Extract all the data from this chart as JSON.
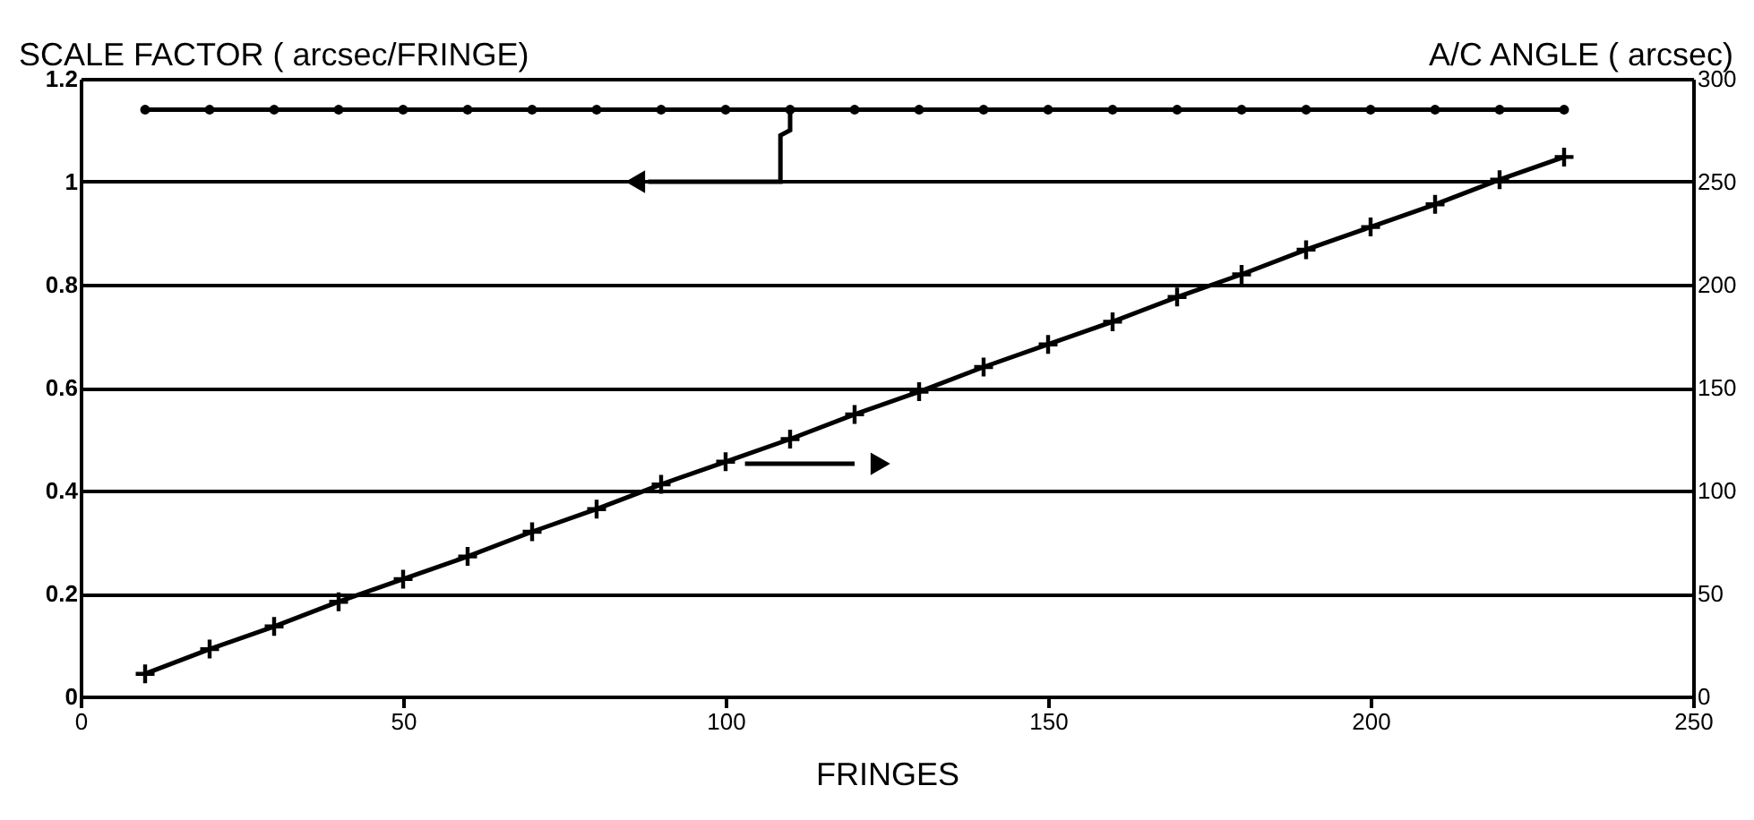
{
  "chart_data": {
    "type": "line",
    "x": [
      10,
      20,
      30,
      40,
      50,
      60,
      70,
      80,
      90,
      100,
      110,
      120,
      130,
      140,
      150,
      160,
      170,
      180,
      190,
      200,
      210,
      220,
      230
    ],
    "xlabel": "FRINGES",
    "ylabel": "SCALE FACTOR ( arcsec/FRINGE)",
    "y2label": "A/C ANGLE ( arcsec)",
    "series": [
      {
        "color": "#000000",
        "marker": "circle",
        "values": [
          1.14,
          1.14,
          1.14,
          1.14,
          1.14,
          1.14,
          1.14,
          1.14,
          1.14,
          1.14,
          1.14,
          1.14,
          1.14,
          1.14,
          1.14,
          1.14,
          1.14,
          1.14,
          1.14,
          1.14,
          1.14,
          1.14,
          1.14
        ]
      },
      {
        "color": "#000000",
        "marker": "cross",
        "axis": "y2",
        "values": [
          11,
          23,
          34,
          46,
          57,
          68,
          80,
          91,
          103,
          114,
          125,
          137,
          148,
          160,
          171,
          182,
          194,
          205,
          217,
          228,
          239,
          251,
          262
        ]
      }
    ],
    "xlim": [
      0,
      250
    ],
    "xticks": [
      0,
      50,
      100,
      150,
      200,
      250
    ],
    "ylim": [
      0,
      1.2
    ],
    "yticks": [
      0,
      0.2,
      0.4,
      0.6,
      0.8,
      1,
      1.2
    ],
    "y2lim": [
      0,
      300
    ],
    "y2ticks": [
      0,
      50,
      100,
      150,
      200,
      250,
      300
    ],
    "grid": "y"
  }
}
